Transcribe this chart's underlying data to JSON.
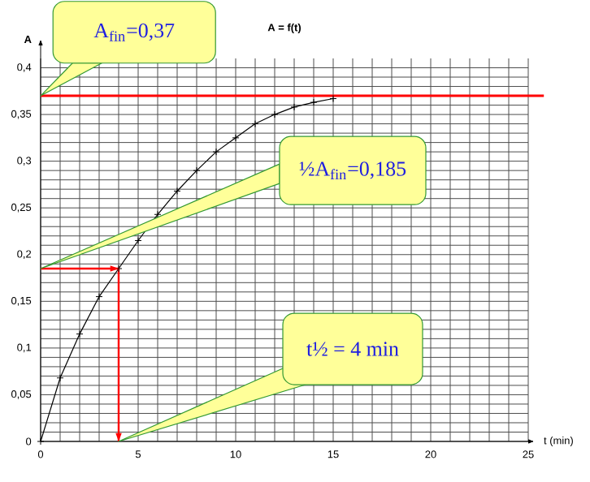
{
  "chart_data": {
    "type": "line",
    "title": "A = f(t)",
    "xlabel": "t (min)",
    "ylabel": "A",
    "xlim": [
      0,
      25
    ],
    "ylim": [
      0,
      0.41
    ],
    "xticks": [
      0,
      5,
      10,
      15,
      20,
      25
    ],
    "yticks": [
      0,
      {
        "value": 0.05,
        "label": "0,05"
      },
      {
        "value": 0.1,
        "label": "0,1"
      },
      {
        "value": 0.15,
        "label": "0,15"
      },
      {
        "value": 0.2,
        "label": "0,2"
      },
      {
        "value": 0.25,
        "label": "0,25"
      },
      {
        "value": 0.3,
        "label": "0,3"
      },
      {
        "value": 0.35,
        "label": "0,35"
      },
      {
        "value": 0.4,
        "label": "0,4"
      }
    ],
    "grid": true,
    "marker": "cross",
    "line_style": "solid",
    "series": [
      {
        "color": "#000000",
        "x": [
          0,
          1,
          2,
          3,
          4,
          5,
          6,
          7,
          8,
          9,
          10,
          11,
          12,
          13,
          14,
          15
        ],
        "values": [
          0,
          0.068,
          0.115,
          0.155,
          0.185,
          0.215,
          0.243,
          0.268,
          0.29,
          0.31,
          0.325,
          0.34,
          0.35,
          0.358,
          0.363,
          0.367
        ]
      },
      {
        "type": "line",
        "color": "#ff0000",
        "marker": "none",
        "x": [
          0,
          4,
          4
        ],
        "values": [
          0.185,
          0.185,
          0
        ]
      }
    ],
    "ref_lines": [
      {
        "axis": "y",
        "value": 0.37,
        "color": "#ff0000"
      }
    ],
    "annotations": [
      "A$_{fin}$=0,37",
      {
        "text": "½A$_{fin}$=0,185",
        "x": 0,
        "y": 0.185
      },
      {
        "text": "t½ = 4 min",
        "x": 4,
        "y": 0
      }
    ]
  }
}
